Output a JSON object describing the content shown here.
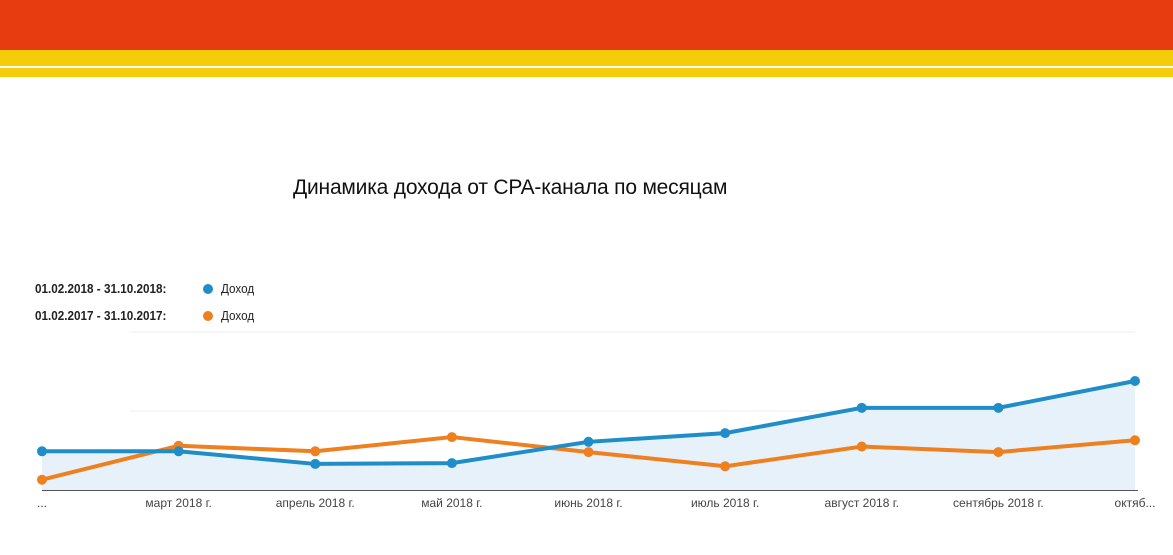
{
  "colors": {
    "header_red": "#E63C0F",
    "header_yellow": "#F4CC0A",
    "series_2018": "#1F8DC7",
    "series_2017": "#EE8020",
    "area_fill": "#E6F1FA",
    "grid": "#EEEEEE",
    "axis": "#555555"
  },
  "chart_data": {
    "type": "line",
    "title": "Динамика дохода от CPA-канала по месяцам",
    "categories": [
      "...",
      "март 2018 г.",
      "апрель 2018 г.",
      "май 2018 г.",
      "июнь 2018 г.",
      "июль 2018 г.",
      "август 2018 г.",
      "сентябрь 2018 г.",
      "октяб..."
    ],
    "series": [
      {
        "name": "Доход",
        "range_label": "01.02.2018 - 31.10.2018:",
        "color": "#1F8DC7",
        "area": true,
        "values": [
          0.49,
          0.49,
          0.33,
          0.34,
          0.61,
          0.72,
          1.04,
          1.04,
          1.38
        ]
      },
      {
        "name": "Доход",
        "range_label": "01.02.2017 - 31.10.2017:",
        "color": "#EE8020",
        "area": false,
        "values": [
          0.13,
          0.56,
          0.49,
          0.67,
          0.48,
          0.3,
          0.55,
          0.48,
          0.63
        ]
      }
    ],
    "ylim": [
      0,
      2
    ],
    "gridlines": true,
    "y_tick_labels_visible": false,
    "legend_position": "top-left"
  }
}
